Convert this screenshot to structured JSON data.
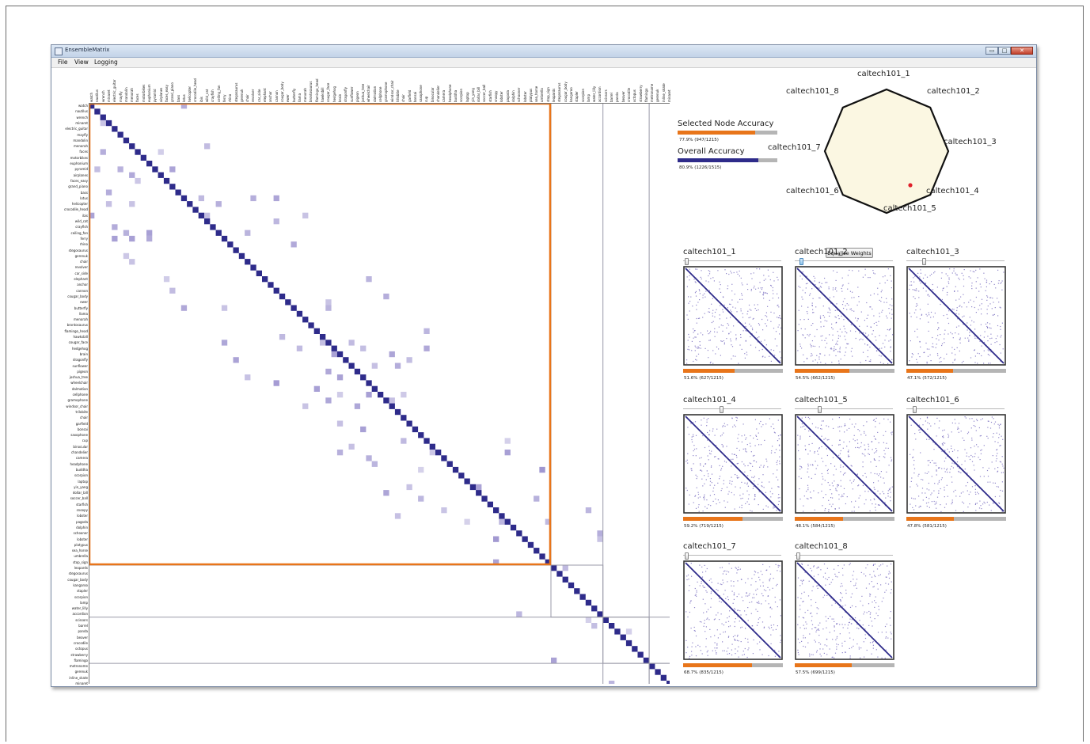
{
  "window": {
    "title": "EnsembleMatrix",
    "minimize_label": "▭",
    "maximize_label": "□",
    "close_label": "✕"
  },
  "menu": [
    "File",
    "View",
    "Logging"
  ],
  "categories": [
    "watch",
    "nautilus",
    "wrench",
    "minaret",
    "electric_guitar",
    "mayfly",
    "mandolin",
    "menorah",
    "faces",
    "motorbikes",
    "euphonium",
    "pyramid",
    "airplanes",
    "faces_easy",
    "grand_piano",
    "bass",
    "lotus",
    "helicopter",
    "crocodile_head",
    "ibis",
    "wild_cat",
    "crayfish",
    "ceiling_fan",
    "ferry",
    "rhino",
    "stegosaurus",
    "gerenuk",
    "chair",
    "revolver",
    "car_side",
    "elephant",
    "anchor",
    "cannon",
    "cougar_body",
    "ewer",
    "butterfly",
    "llama",
    "menorah",
    "brontosaurus",
    "flamingo_head",
    "hawksbill",
    "cougar_face",
    "hedgehog",
    "brain",
    "dragonfly",
    "sunflower",
    "pigeon",
    "joshua_tree",
    "wheelchair",
    "dalmatian",
    "cellphone",
    "gramophone",
    "windsor_chair",
    "trilobite",
    "chair",
    "garfield",
    "bonsai",
    "saxophone",
    "cup",
    "binocular",
    "chandelier",
    "camera",
    "headphone",
    "buddha",
    "scorpion",
    "laptop",
    "yin_yang",
    "dollar_bill",
    "soccer_ball",
    "starfish",
    "snoopy",
    "lobster",
    "pagoda",
    "dolphin",
    "schooner",
    "lobster",
    "platypus",
    "sea_horse",
    "umbrella",
    "stop_sign",
    "leopards",
    "stegosaurus",
    "cougar_body",
    "kangaroo",
    "stapler",
    "scorpion",
    "lamp",
    "water_lilly",
    "accordion",
    "scissors",
    "barrel",
    "panda",
    "beaver",
    "crocodile",
    "octopus",
    "strawberry",
    "flamingo",
    "metronome",
    "gerenuk",
    "inline_skate",
    "minaret"
  ],
  "accuracy": {
    "selected": {
      "label": "Selected Node Accuracy",
      "value": 0.779,
      "text": "77.9%  (947/1215)",
      "color": "#e8751a"
    },
    "overall": {
      "label": "Overall Accuracy",
      "value": 0.809,
      "text": "80.9%  (1226/1515)",
      "color": "#2e2b8a"
    }
  },
  "radar": {
    "labels": [
      "caltech101_1",
      "caltech101_2",
      "caltech101_3",
      "caltech101_4",
      "caltech101_5",
      "caltech101_6",
      "caltech101_7",
      "caltech101_8"
    ],
    "fill": "#fbf7e2",
    "marker_color": "#e0202a"
  },
  "equalize_label": "Equalize Weights",
  "classifiers": [
    {
      "name": "caltech101_1",
      "acc": 0.516,
      "text": "51.6%  (627/1215)",
      "weight": 0.02
    },
    {
      "name": "caltech101_2",
      "acc": 0.545,
      "text": "54.5%  (662/1215)",
      "weight": 0.05
    },
    {
      "name": "caltech101_3",
      "acc": 0.471,
      "text": "47.1%  (572/1215)",
      "weight": 0.17
    },
    {
      "name": "caltech101_4",
      "acc": 0.592,
      "text": "59.2%  (719/1215)",
      "weight": 0.39
    },
    {
      "name": "caltech101_5",
      "acc": 0.481,
      "text": "48.1%  (584/1215)",
      "weight": 0.24
    },
    {
      "name": "caltech101_6",
      "acc": 0.478,
      "text": "47.8%  (581/1215)",
      "weight": 0.07
    },
    {
      "name": "caltech101_7",
      "acc": 0.687,
      "text": "68.7%  (835/1215)",
      "weight": 0.02
    },
    {
      "name": "caltech101_8",
      "acc": 0.575,
      "text": "57.5%  (699/1215)",
      "weight": 0.02
    }
  ],
  "colors": {
    "diagonal": "#2e2b8a",
    "confusion": "#8a7fc6",
    "selection": "#e8751a",
    "grid": "#9a9aa8"
  }
}
